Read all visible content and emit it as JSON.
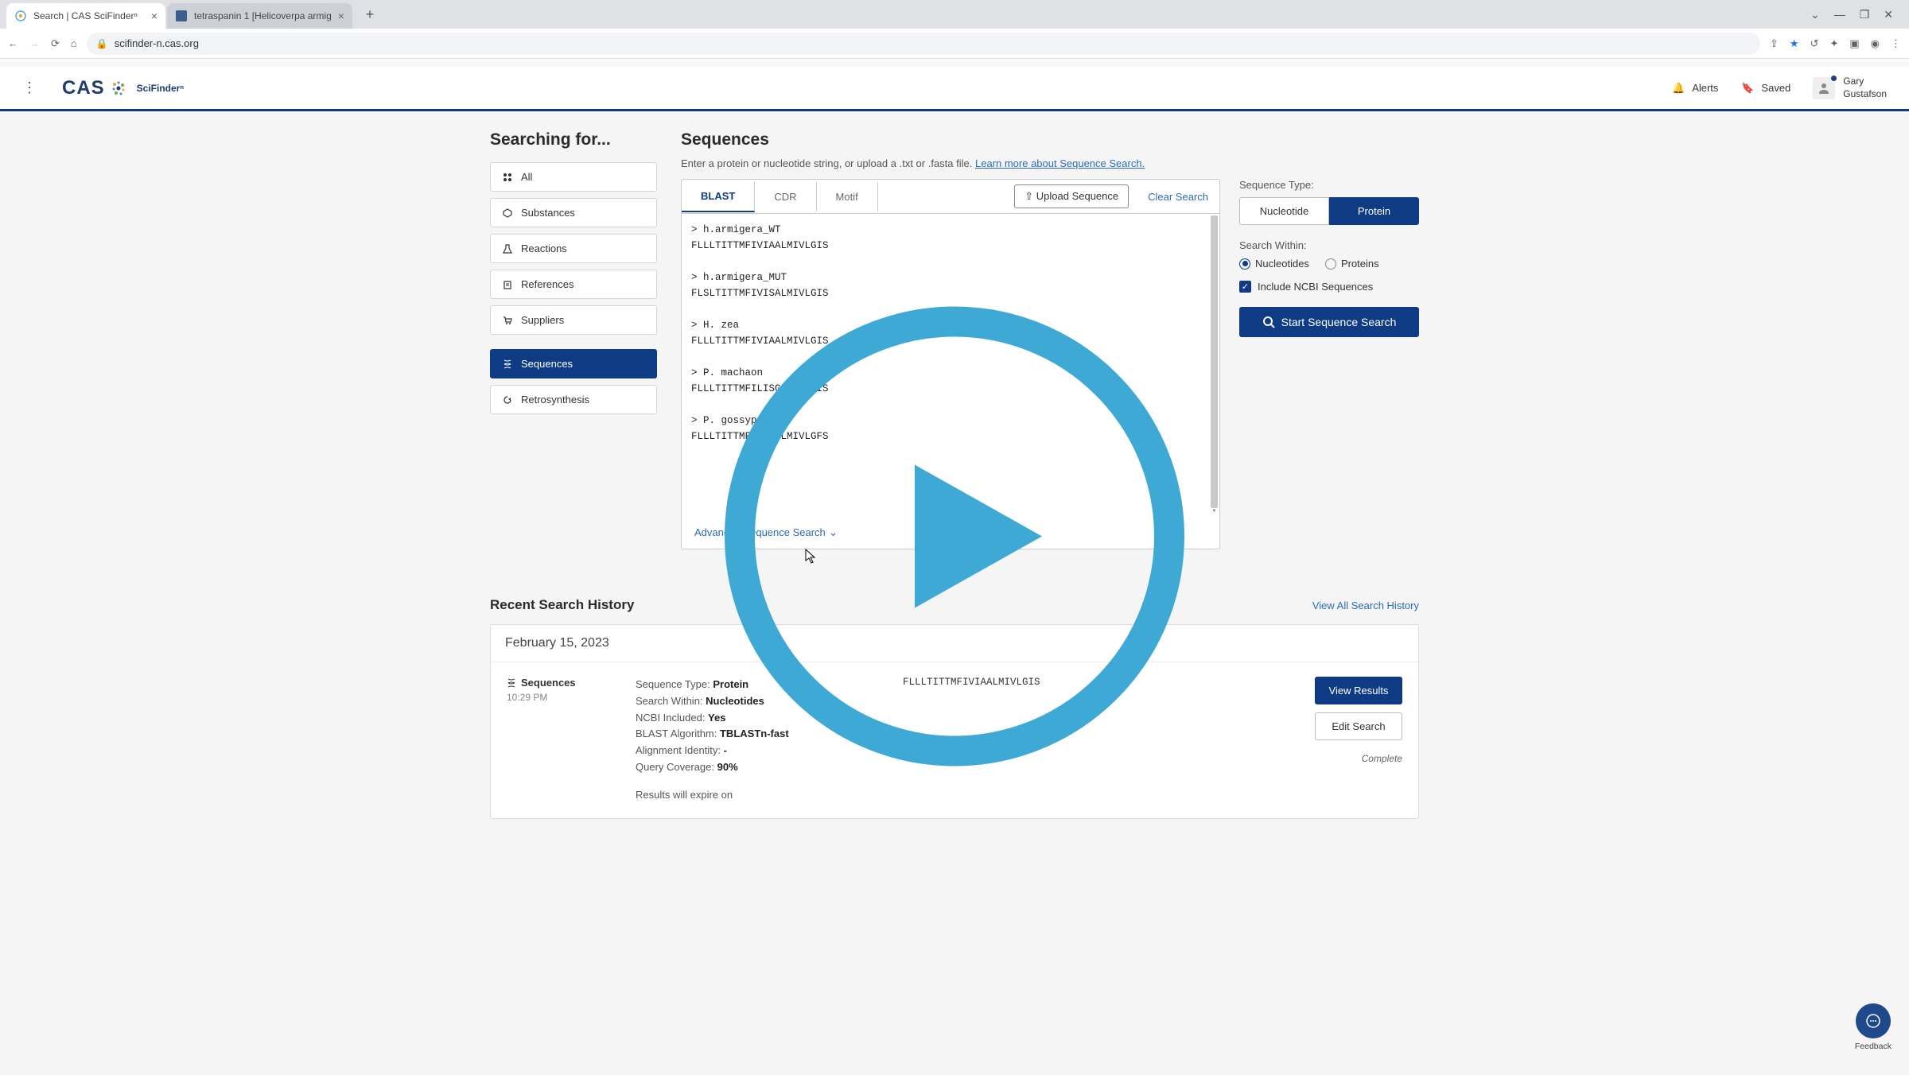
{
  "browser": {
    "tab1_title": "Search | CAS SciFinderⁿ",
    "tab2_title": "tetraspanin 1 [Helicoverpa armig",
    "url": "scifinder-n.cas.org"
  },
  "header": {
    "logo_text": "CAS",
    "product": "SciFinderⁿ",
    "alerts": "Alerts",
    "saved": "Saved",
    "user_first": "Gary",
    "user_last": "Gustafson"
  },
  "sidebar": {
    "title": "Searching for...",
    "items": [
      {
        "label": "All",
        "icon": "grid"
      },
      {
        "label": "Substances",
        "icon": "hex"
      },
      {
        "label": "Reactions",
        "icon": "flask"
      },
      {
        "label": "References",
        "icon": "book"
      },
      {
        "label": "Suppliers",
        "icon": "cart"
      },
      {
        "label": "Sequences",
        "icon": "dna",
        "active": true,
        "gap": true
      },
      {
        "label": "Retrosynthesis",
        "icon": "retro"
      }
    ]
  },
  "sequences": {
    "title": "Sequences",
    "subtitle_pre": "Enter a protein or nucleotide string, or upload a .txt or .fasta file. ",
    "subtitle_link": "Learn more about Sequence Search.",
    "tabs": {
      "blast": "BLAST",
      "cdr": "CDR",
      "motif": "Motif"
    },
    "upload": "Upload Sequence",
    "clear": "Clear Search",
    "textarea_lines": [
      "> h.armigera_WT",
      "FLLLTITTMFIVIAALMIVLGIS",
      "",
      "> h.armigera_MUT",
      "FLSLTITTMFIVISALMIVLGIS",
      "",
      "> H. zea",
      "FLLLTITTMFIVIAALMIVLGIS",
      "",
      "> P. machaon",
      "FLLLTITTMFILISGLMIILGIS",
      "",
      "> P. gossypiella",
      "FLLLTITTMFIIIAGLMIVLGFS"
    ],
    "adv": "Advanced Sequence Search"
  },
  "options": {
    "seq_type_label": "Sequence Type:",
    "nucleotide": "Nucleotide",
    "protein": "Protein",
    "search_within_label": "Search Within:",
    "nucleotides": "Nucleotides",
    "proteins": "Proteins",
    "ncbi": "Include NCBI Sequences",
    "start": "Start Sequence Search"
  },
  "history": {
    "title": "Recent Search History",
    "view_all": "View All Search History",
    "date": "February 15, 2023",
    "item": {
      "type": "Sequences",
      "time": "10:29 PM",
      "seq_type_lbl": "Sequence Type: ",
      "seq_type_val": "Protein",
      "search_within_lbl": "Search Within: ",
      "search_within_val": "Nucleotides",
      "ncbi_lbl": "NCBI Included: ",
      "ncbi_val": "Yes",
      "algo_lbl": "BLAST Algorithm: ",
      "algo_val": "TBLASTn-fast",
      "align_lbl": "Alignment Identity: ",
      "align_val": "-",
      "cov_lbl": "Query Coverage: ",
      "cov_val": "90%",
      "expire": "Results will expire on",
      "seq_string": "FLLLTITTMFIVIAALMIVLGIS",
      "view": "View Results",
      "edit": "Edit Search",
      "status": "Complete"
    }
  },
  "feedback": "Feedback",
  "colors": {
    "primary": "#0f3b85",
    "link": "#2c6cb5",
    "play_overlay": "#3fa9d6"
  }
}
